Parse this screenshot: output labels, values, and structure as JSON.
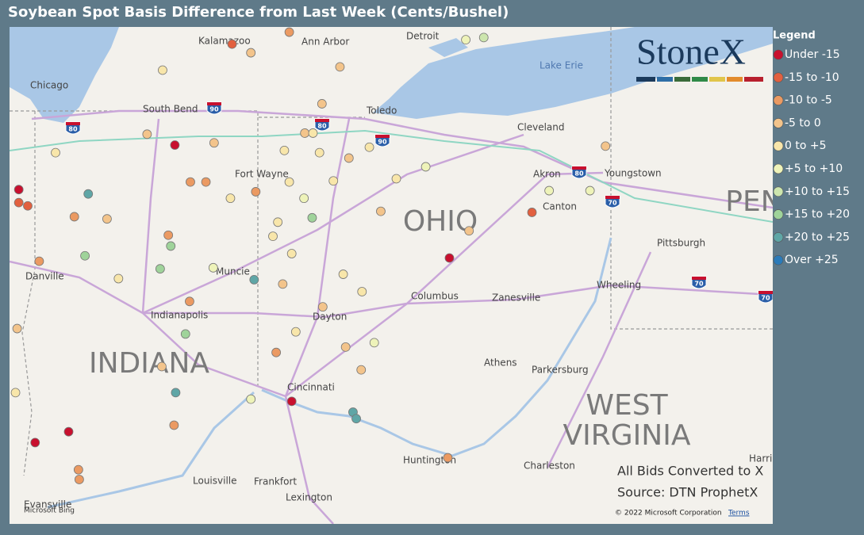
{
  "title": "Soybean Spot Basis Difference from Last Week (Cents/Bushel)",
  "logo": "StoneX",
  "legend": {
    "title": "Legend",
    "items": [
      {
        "label": "Under -15",
        "color": "#c8102e",
        "points": [
          [
            41.42,
            -85.83
          ],
          [
            41.01,
            -87.74
          ],
          [
            40.38,
            -82.47
          ],
          [
            39.06,
            -84.4
          ],
          [
            38.78,
            -87.13
          ],
          [
            38.68,
            -87.54
          ]
        ]
      },
      {
        "label": "-15 to -10",
        "color": "#e2603f",
        "points": [
          [
            42.35,
            -85.13
          ],
          [
            40.89,
            -87.74
          ],
          [
            40.86,
            -87.63
          ],
          [
            40.8,
            -81.46
          ]
        ]
      },
      {
        "label": "-10 to -5",
        "color": "#eb9a62",
        "points": [
          [
            41.08,
            -85.64
          ],
          [
            41.08,
            -85.45
          ],
          [
            40.76,
            -87.06
          ],
          [
            40.59,
            -85.91
          ],
          [
            40.99,
            -84.84
          ],
          [
            42.46,
            -84.43
          ],
          [
            40.35,
            -87.49
          ],
          [
            39.98,
            -85.65
          ],
          [
            39.51,
            -84.59
          ],
          [
            38.84,
            -85.84
          ],
          [
            38.43,
            -87.01
          ],
          [
            38.54,
            -82.49
          ],
          [
            38.34,
            -87.0
          ]
        ]
      },
      {
        "label": "-5 to 0",
        "color": "#f3c48b",
        "points": [
          [
            42.27,
            -84.9
          ],
          [
            42.14,
            -83.81
          ],
          [
            41.8,
            -84.03
          ],
          [
            41.52,
            -86.17
          ],
          [
            41.44,
            -85.35
          ],
          [
            41.53,
            -84.24
          ],
          [
            41.3,
            -83.7
          ],
          [
            40.81,
            -83.31
          ],
          [
            40.63,
            -82.23
          ],
          [
            41.41,
            -80.56
          ],
          [
            40.74,
            -86.66
          ],
          [
            40.14,
            -84.51
          ],
          [
            39.93,
            -84.02
          ],
          [
            39.56,
            -83.74
          ],
          [
            39.35,
            -83.55
          ],
          [
            39.38,
            -85.99
          ],
          [
            39.73,
            -87.76
          ]
        ]
      },
      {
        "label": "0 to +5",
        "color": "#f8e6aa",
        "points": [
          [
            42.11,
            -85.98
          ],
          [
            41.35,
            -84.06
          ],
          [
            41.53,
            -84.14
          ],
          [
            41.09,
            -83.89
          ],
          [
            41.4,
            -83.45
          ],
          [
            41.11,
            -83.12
          ],
          [
            41.37,
            -84.49
          ],
          [
            40.58,
            -84.63
          ],
          [
            40.42,
            -84.4
          ],
          [
            40.23,
            -83.77
          ],
          [
            40.07,
            -83.54
          ],
          [
            39.7,
            -84.35
          ],
          [
            40.93,
            -85.15
          ],
          [
            40.19,
            -86.52
          ],
          [
            41.35,
            -87.29
          ],
          [
            41.08,
            -84.43
          ],
          [
            40.71,
            -84.57
          ],
          [
            39.14,
            -87.78
          ]
        ]
      },
      {
        "label": "+5 to +10",
        "color": "#eef3b9",
        "points": [
          [
            41.22,
            -82.76
          ],
          [
            41.0,
            -81.25
          ],
          [
            41.0,
            -80.75
          ],
          [
            39.6,
            -83.39
          ],
          [
            39.08,
            -84.9
          ],
          [
            40.29,
            -85.36
          ],
          [
            42.39,
            -82.27
          ],
          [
            40.93,
            -84.25
          ]
        ]
      },
      {
        "label": "+10 to +15",
        "color": "#cde6ae",
        "points": [
          [
            42.41,
            -82.05
          ]
        ]
      },
      {
        "label": "+15 to +20",
        "color": "#9fd39a",
        "points": [
          [
            40.75,
            -84.15
          ],
          [
            40.4,
            -86.93
          ],
          [
            40.28,
            -86.01
          ],
          [
            39.68,
            -85.7
          ],
          [
            40.49,
            -85.88
          ]
        ]
      },
      {
        "label": "+20 to +25",
        "color": "#5fa6a6",
        "points": [
          [
            40.97,
            -86.89
          ],
          [
            40.18,
            -84.86
          ],
          [
            39.14,
            -85.82
          ],
          [
            38.96,
            -83.65
          ],
          [
            38.9,
            -83.61
          ]
        ]
      },
      {
        "label": "Over +25",
        "color": "#2b7bb9",
        "points": []
      }
    ]
  },
  "map": {
    "labels": [
      "Kalamazoo",
      "Ann Arbor",
      "Detroit",
      "Chicago",
      "South Bend",
      "Toledo",
      "Lake Erie",
      "Cleveland",
      "Fort Wayne",
      "Akron",
      "Youngstown",
      "Canton",
      "OHIO",
      "Pittsburgh",
      "Muncie",
      "Danville",
      "Wheeling",
      "Columbus",
      "Zanesville",
      "Indianapolis",
      "Dayton",
      "INDIANA",
      "Athens",
      "Parkersburg",
      "Cincinnati",
      "WEST",
      "VIRGINIA",
      "PEN",
      "Huntington",
      "Charleston",
      "Harris",
      "Louisville",
      "Frankfort",
      "Lexington",
      "Evansville"
    ],
    "shields": [
      "80",
      "90",
      "80",
      "90",
      "80",
      "70",
      "70",
      "70"
    ],
    "attribution": "Microsoft Bing",
    "copyright": "© 2022 Microsoft Corporation",
    "terms": "Terms"
  },
  "notes": [
    "All Bids Converted to X",
    "Source: DTN ProphetX"
  ]
}
